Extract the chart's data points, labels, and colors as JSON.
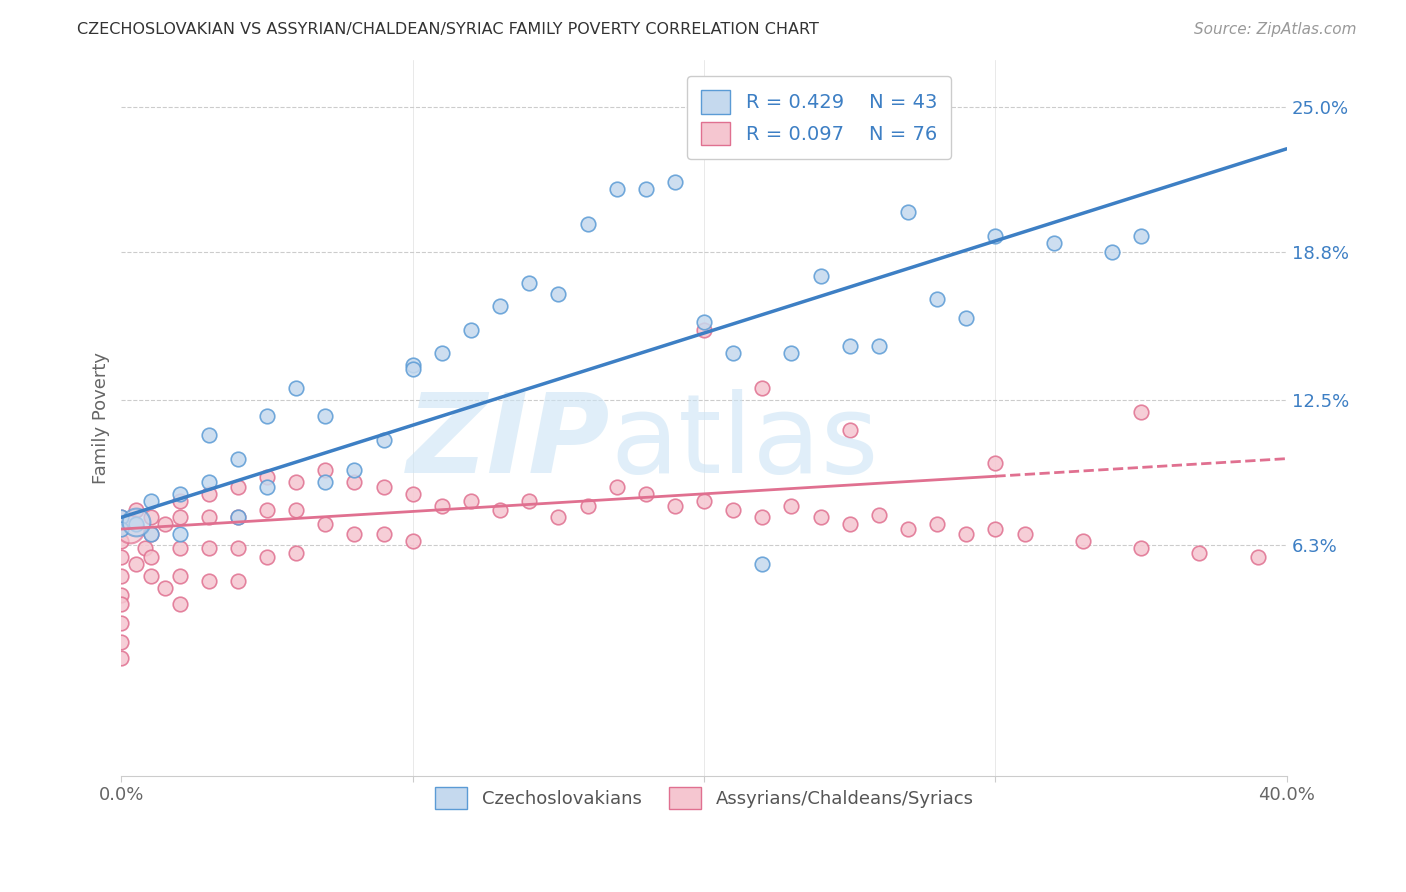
{
  "title": "CZECHOSLOVAKIAN VS ASSYRIAN/CHALDEAN/SYRIAC FAMILY POVERTY CORRELATION CHART",
  "source": "Source: ZipAtlas.com",
  "ylabel": "Family Poverty",
  "yticks_labels": [
    "6.3%",
    "12.5%",
    "18.8%",
    "25.0%"
  ],
  "ytick_values": [
    0.063,
    0.125,
    0.188,
    0.25
  ],
  "xlim": [
    0.0,
    0.4
  ],
  "ylim": [
    -0.035,
    0.27
  ],
  "legend_r1": "R = 0.429",
  "legend_n1": "N = 43",
  "legend_r2": "R = 0.097",
  "legend_n2": "N = 76",
  "color_czech_face": "#c5d9ee",
  "color_czech_edge": "#5b9bd5",
  "color_assyr_face": "#f5c6d0",
  "color_assyr_edge": "#e07090",
  "line_color_czech": "#3d7fc4",
  "line_color_assyr": "#e07090",
  "background_color": "#ffffff",
  "legend_labels": [
    "Czechoslovakians",
    "Assyrians/Chaldeans/Syriacs"
  ],
  "czech_line_start_y": 0.075,
  "czech_line_end_y": 0.232,
  "assyr_line_start_y": 0.07,
  "assyr_line_end_y": 0.1,
  "czech_x": [
    0.0,
    0.0,
    0.005,
    0.01,
    0.01,
    0.02,
    0.02,
    0.03,
    0.03,
    0.04,
    0.04,
    0.05,
    0.05,
    0.06,
    0.07,
    0.07,
    0.08,
    0.09,
    0.1,
    0.1,
    0.11,
    0.12,
    0.13,
    0.14,
    0.15,
    0.16,
    0.17,
    0.18,
    0.19,
    0.2,
    0.21,
    0.22,
    0.23,
    0.24,
    0.25,
    0.26,
    0.27,
    0.28,
    0.29,
    0.3,
    0.32,
    0.34,
    0.35
  ],
  "czech_y": [
    0.075,
    0.07,
    0.072,
    0.082,
    0.068,
    0.085,
    0.068,
    0.11,
    0.09,
    0.1,
    0.075,
    0.118,
    0.088,
    0.13,
    0.118,
    0.09,
    0.095,
    0.108,
    0.14,
    0.138,
    0.145,
    0.155,
    0.165,
    0.175,
    0.17,
    0.2,
    0.215,
    0.215,
    0.218,
    0.158,
    0.145,
    0.055,
    0.145,
    0.178,
    0.148,
    0.148,
    0.205,
    0.168,
    0.16,
    0.195,
    0.192,
    0.188,
    0.195
  ],
  "assyr_x": [
    0.0,
    0.0,
    0.0,
    0.0,
    0.0,
    0.0,
    0.0,
    0.0,
    0.0,
    0.0,
    0.005,
    0.005,
    0.008,
    0.01,
    0.01,
    0.01,
    0.01,
    0.015,
    0.015,
    0.02,
    0.02,
    0.02,
    0.02,
    0.02,
    0.03,
    0.03,
    0.03,
    0.03,
    0.04,
    0.04,
    0.04,
    0.04,
    0.05,
    0.05,
    0.05,
    0.06,
    0.06,
    0.06,
    0.07,
    0.07,
    0.08,
    0.08,
    0.09,
    0.09,
    0.1,
    0.1,
    0.11,
    0.12,
    0.13,
    0.14,
    0.15,
    0.16,
    0.17,
    0.18,
    0.19,
    0.2,
    0.21,
    0.22,
    0.23,
    0.24,
    0.25,
    0.26,
    0.27,
    0.28,
    0.29,
    0.3,
    0.31,
    0.33,
    0.35,
    0.37,
    0.39,
    0.2,
    0.22,
    0.25,
    0.3,
    0.35
  ],
  "assyr_y": [
    0.075,
    0.07,
    0.065,
    0.058,
    0.05,
    0.042,
    0.038,
    0.03,
    0.022,
    0.015,
    0.078,
    0.055,
    0.062,
    0.075,
    0.068,
    0.058,
    0.05,
    0.072,
    0.045,
    0.082,
    0.075,
    0.062,
    0.05,
    0.038,
    0.085,
    0.075,
    0.062,
    0.048,
    0.088,
    0.075,
    0.062,
    0.048,
    0.092,
    0.078,
    0.058,
    0.09,
    0.078,
    0.06,
    0.095,
    0.072,
    0.09,
    0.068,
    0.088,
    0.068,
    0.085,
    0.065,
    0.08,
    0.082,
    0.078,
    0.082,
    0.075,
    0.08,
    0.088,
    0.085,
    0.08,
    0.082,
    0.078,
    0.075,
    0.08,
    0.075,
    0.072,
    0.076,
    0.07,
    0.072,
    0.068,
    0.07,
    0.068,
    0.065,
    0.062,
    0.06,
    0.058,
    0.155,
    0.13,
    0.112,
    0.098,
    0.12
  ],
  "assyr_sizes": [
    200,
    180,
    160,
    140,
    120,
    110,
    100,
    90,
    80,
    70,
    120,
    100,
    110,
    120,
    110,
    100,
    90,
    110,
    90,
    120,
    110,
    100,
    90,
    80,
    120,
    110,
    100,
    90,
    120,
    110,
    100,
    90,
    120,
    110,
    90,
    115,
    105,
    90,
    115,
    100,
    110,
    95,
    105,
    90,
    100,
    85,
    100,
    100,
    95,
    100,
    95,
    100,
    105,
    100,
    95,
    100,
    95,
    90,
    95,
    90,
    88,
    92,
    85,
    88,
    82,
    85,
    80,
    78,
    72,
    68,
    65,
    120,
    105,
    95,
    90,
    105
  ]
}
